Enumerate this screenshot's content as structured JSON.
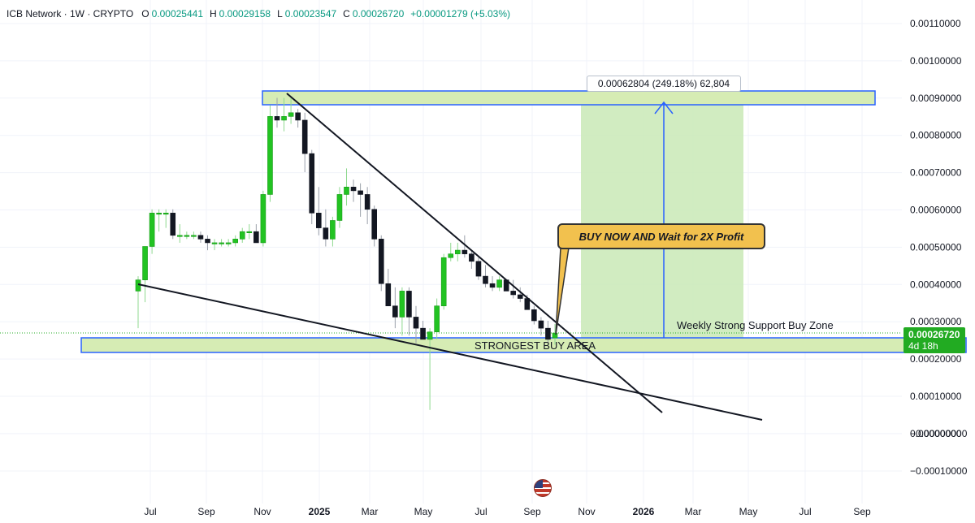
{
  "header": {
    "symbol": "ICB Network · 1W · CRYPTO",
    "open_label": "O",
    "open": "0.00025441",
    "high_label": "H",
    "high": "0.00029158",
    "low_label": "L",
    "low": "0.00023547",
    "close_label": "C",
    "close": "0.00026720",
    "change": "+0.00001279 (+5.03%)"
  },
  "annotations": {
    "callout": "BUY NOW AND Wait for 2X Profit",
    "measure": "0.00062804 (249.18%) 62,804",
    "zone_label": "Weekly Strong Support Buy Zone",
    "area_label": "STRONGEST BUY AREA"
  },
  "price_tag": {
    "price": "0.00026720",
    "countdown": "4d 18h"
  },
  "colors": {
    "up": "#22c322",
    "down": "#131722",
    "zone_fill": "#d6ecb4",
    "zone_border": "#2962ff",
    "target_fill": "#c9e9b6",
    "tag": "#22ab22"
  },
  "chart_data": {
    "type": "candlestick",
    "title": "ICB Network · 1W · CRYPTO",
    "y_ticks": [
      "0.00110000",
      "0.00100000",
      "0.00090000",
      "0.00080000",
      "0.00070000",
      "0.00060000",
      "0.00050000",
      "0.00040000",
      "0.00030000",
      "0.00020000",
      "0.00010000",
      "0.00000000",
      "−0.00000000",
      "−0.00010000"
    ],
    "y_tick_values": [
      0.0011,
      0.001,
      0.0009,
      0.0008,
      0.0007,
      0.0006,
      0.0005,
      0.0004,
      0.0003,
      0.0002,
      0.0001,
      0.0,
      -2.5e-05,
      -0.0001
    ],
    "ylim": [
      -0.000115,
      0.00118
    ],
    "x_ticks": [
      {
        "label": "Jul",
        "bold": false
      },
      {
        "label": "Sep",
        "bold": false
      },
      {
        "label": "Nov",
        "bold": false
      },
      {
        "label": "2025",
        "bold": true
      },
      {
        "label": "Mar",
        "bold": false
      },
      {
        "label": "May",
        "bold": false
      },
      {
        "label": "Jul",
        "bold": false
      },
      {
        "label": "Sep",
        "bold": false
      },
      {
        "label": "Nov",
        "bold": false
      },
      {
        "label": "2026",
        "bold": true
      },
      {
        "label": "Mar",
        "bold": false
      },
      {
        "label": "May",
        "bold": false
      },
      {
        "label": "Jul",
        "bold": false
      },
      {
        "label": "Sep",
        "bold": false
      }
    ],
    "candles": [
      [
        0.00038,
        0.00042,
        0.00028,
        0.00041
      ],
      [
        0.00041,
        0.0005,
        0.00035,
        0.0005
      ],
      [
        0.0005,
        0.0006,
        0.00048,
        0.00059
      ],
      [
        0.00059,
        0.0006,
        0.00054,
        0.00059
      ],
      [
        0.00059,
        0.0006,
        0.00055,
        0.00059
      ],
      [
        0.00059,
        0.0006,
        0.00052,
        0.00053
      ],
      [
        0.00053,
        0.00056,
        0.00051,
        0.00053
      ],
      [
        0.00053,
        0.00054,
        0.00052,
        0.00053
      ],
      [
        0.00053,
        0.00054,
        0.00052,
        0.00053
      ],
      [
        0.00053,
        0.00054,
        0.00051,
        0.00052
      ],
      [
        0.00052,
        0.00053,
        0.00049,
        0.00051
      ],
      [
        0.00051,
        0.00052,
        0.00049,
        0.00051
      ],
      [
        0.00051,
        0.00052,
        0.0005,
        0.00051
      ],
      [
        0.00051,
        0.00052,
        0.0005,
        0.00051
      ],
      [
        0.00051,
        0.00053,
        0.0005,
        0.00052
      ],
      [
        0.00052,
        0.00055,
        0.00051,
        0.00054
      ],
      [
        0.00054,
        0.00056,
        0.00052,
        0.00054
      ],
      [
        0.00054,
        0.00056,
        0.00051,
        0.00051
      ],
      [
        0.00051,
        0.00065,
        0.0005,
        0.00064
      ],
      [
        0.00064,
        0.00088,
        0.00062,
        0.00085
      ],
      [
        0.00085,
        0.0009,
        0.00082,
        0.00084
      ],
      [
        0.00084,
        0.0009,
        0.00081,
        0.00085
      ],
      [
        0.00085,
        0.0009,
        0.00083,
        0.00086
      ],
      [
        0.00086,
        0.00087,
        0.00082,
        0.00084
      ],
      [
        0.00084,
        0.00086,
        0.0007,
        0.00075
      ],
      [
        0.00075,
        0.00076,
        0.00056,
        0.00059
      ],
      [
        0.00059,
        0.00066,
        0.00053,
        0.00055
      ],
      [
        0.00055,
        0.0006,
        0.0005,
        0.00052
      ],
      [
        0.00052,
        0.00058,
        0.0005,
        0.00057
      ],
      [
        0.00057,
        0.00066,
        0.00055,
        0.00064
      ],
      [
        0.00064,
        0.00071,
        0.00061,
        0.00066
      ],
      [
        0.00066,
        0.00068,
        0.00062,
        0.00065
      ],
      [
        0.00065,
        0.00067,
        0.00058,
        0.00064
      ],
      [
        0.00064,
        0.00066,
        0.00056,
        0.0006
      ],
      [
        0.0006,
        0.00061,
        0.0005,
        0.00052
      ],
      [
        0.00052,
        0.00053,
        0.00038,
        0.0004
      ],
      [
        0.0004,
        0.00044,
        0.00034,
        0.00034
      ],
      [
        0.00034,
        0.00039,
        0.00028,
        0.00031
      ],
      [
        0.00031,
        0.00039,
        0.00026,
        0.00038
      ],
      [
        0.00038,
        0.00039,
        0.00026,
        0.00031
      ],
      [
        0.00031,
        0.00034,
        0.00024,
        0.00028
      ],
      [
        0.00028,
        0.0003,
        0.00025,
        0.00025
      ],
      [
        0.00025,
        0.00028,
        6e-05,
        0.00027
      ],
      [
        0.00027,
        0.00036,
        0.00025,
        0.00034
      ],
      [
        0.00034,
        0.00048,
        0.00033,
        0.00047
      ],
      [
        0.00047,
        0.00051,
        0.00046,
        0.00048
      ],
      [
        0.00048,
        0.00051,
        0.00046,
        0.00049
      ],
      [
        0.00049,
        0.00053,
        0.00047,
        0.00048
      ],
      [
        0.00048,
        0.00049,
        0.00044,
        0.00046
      ],
      [
        0.00046,
        0.00047,
        0.00041,
        0.00042
      ],
      [
        0.00042,
        0.00045,
        0.00039,
        0.0004
      ],
      [
        0.0004,
        0.00042,
        0.00038,
        0.00039
      ],
      [
        0.00039,
        0.00042,
        0.00038,
        0.00041
      ],
      [
        0.00041,
        0.00041,
        0.00038,
        0.00038
      ],
      [
        0.00038,
        0.00041,
        0.00036,
        0.00037
      ],
      [
        0.00037,
        0.00039,
        0.00035,
        0.00036
      ],
      [
        0.00036,
        0.00037,
        0.00033,
        0.00033
      ],
      [
        0.00033,
        0.00034,
        0.00029,
        0.0003
      ],
      [
        0.0003,
        0.00031,
        0.00026,
        0.00028
      ],
      [
        0.00028,
        0.0003,
        0.00024,
        0.00025
      ],
      [
        0.000254,
        0.00029158,
        0.00023547,
        0.000267
      ]
    ],
    "zones": [
      {
        "label": "STRONGEST BUY AREA",
        "from": 0.000205,
        "to": 0.00025
      },
      {
        "label": "target",
        "from": 0.00088,
        "to": 0.000915
      }
    ],
    "measure": {
      "from": 0.00025,
      "to": 0.00088,
      "text": "0.00062804 (249.18%) 62,804"
    },
    "last_price": 0.0002672
  }
}
